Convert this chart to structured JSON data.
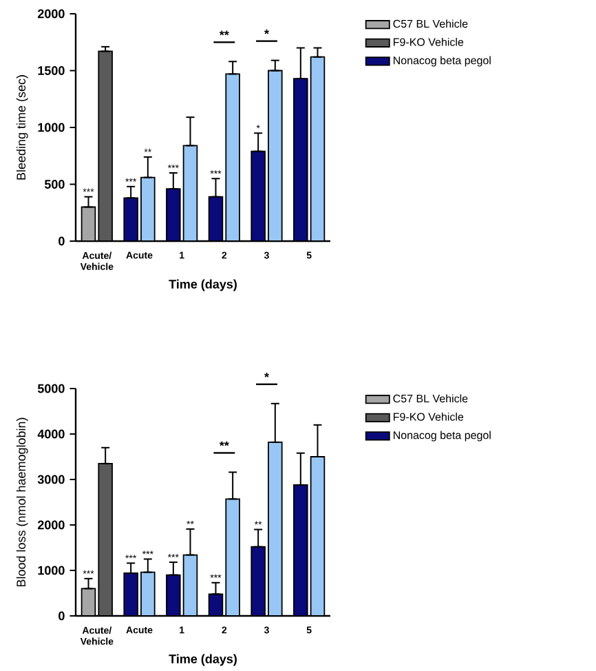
{
  "chart_data": [
    {
      "type": "bar",
      "xlabel": "Time (days)",
      "ylabel": "Bleeding time (sec)",
      "categories": [
        "Acute/ Vehicle",
        "Acute",
        "1",
        "2",
        "3",
        "5"
      ],
      "ylim": [
        0,
        2000
      ],
      "yticks": [
        0,
        500,
        1000,
        1500,
        2000
      ],
      "legend": "right",
      "series": [
        {
          "name": "C57 BL Vehicle",
          "color": "#a6a6a6",
          "values": [
            300,
            null,
            null,
            null,
            null,
            null
          ],
          "errors": [
            [
              300,
              390
            ],
            null,
            null,
            null,
            null,
            null
          ],
          "value_labels": [
            "***",
            null,
            null,
            null,
            null,
            null
          ]
        },
        {
          "name": "F9-KO Vehicle",
          "color": "#5a5a5a",
          "values": [
            1670,
            null,
            null,
            null,
            null,
            null
          ],
          "errors": [
            [
              1670,
              1710
            ],
            null,
            null,
            null,
            null,
            null
          ],
          "value_labels": [
            null,
            null,
            null,
            null,
            null,
            null
          ]
        },
        {
          "name": "Nonacog beta pegol",
          "color": "#0a0a7a",
          "values": [
            null,
            380,
            460,
            390,
            790,
            1430
          ],
          "errors": [
            null,
            [
              380,
              480
            ],
            [
              460,
              600
            ],
            [
              390,
              550
            ],
            [
              790,
              950
            ],
            [
              1430,
              1700
            ]
          ],
          "value_labels": [
            null,
            "***",
            "***",
            "***",
            "*",
            null
          ]
        },
        {
          "color": "#99c7f5",
          "values": [
            null,
            560,
            840,
            1470,
            1500,
            1620
          ],
          "errors": [
            null,
            [
              560,
              740
            ],
            [
              840,
              1090
            ],
            [
              1470,
              1580
            ],
            [
              1500,
              1590
            ],
            [
              1620,
              1700
            ]
          ],
          "value_labels": [
            null,
            "**",
            null,
            null,
            null,
            null
          ]
        }
      ],
      "annotations": [
        {
          "text": "**",
          "x": "2",
          "y": 1580
        },
        {
          "text": "*",
          "x": "3",
          "y": 1590
        }
      ]
    },
    {
      "type": "bar",
      "xlabel": "Time (days)",
      "ylabel": "Blood loss (nmol haemoglobin)",
      "categories": [
        "Acute/ Vehicle",
        "Acute",
        "1",
        "2",
        "3",
        "5"
      ],
      "ylim": [
        0,
        5000
      ],
      "yticks": [
        0,
        1000,
        2000,
        3000,
        4000,
        5000
      ],
      "legend": "right",
      "series": [
        {
          "name": "C57 BL Vehicle",
          "color": "#a6a6a6",
          "values": [
            600,
            null,
            null,
            null,
            null,
            null
          ],
          "errors": [
            [
              600,
              820
            ],
            null,
            null,
            null,
            null,
            null
          ],
          "value_labels": [
            "***",
            null,
            null,
            null,
            null,
            null
          ]
        },
        {
          "name": "F9-KO Vehicle",
          "color": "#5a5a5a",
          "values": [
            3350,
            null,
            null,
            null,
            null,
            null
          ],
          "errors": [
            [
              3350,
              3700
            ],
            null,
            null,
            null,
            null,
            null
          ],
          "value_labels": [
            null,
            null,
            null,
            null,
            null,
            null
          ]
        },
        {
          "name": "Nonacog beta pegol",
          "color": "#0a0a7a",
          "values": [
            null,
            940,
            900,
            480,
            1520,
            2880
          ],
          "errors": [
            null,
            [
              940,
              1160
            ],
            [
              900,
              1180
            ],
            [
              480,
              730
            ],
            [
              1520,
              1900
            ],
            [
              2880,
              3580
            ]
          ],
          "value_labels": [
            null,
            "***",
            "***",
            "***",
            "**",
            null
          ]
        },
        {
          "color": "#99c7f5",
          "values": [
            null,
            960,
            1340,
            2570,
            3820,
            3500
          ],
          "errors": [
            null,
            [
              960,
              1250
            ],
            [
              1340,
              1910
            ],
            [
              2570,
              3160
            ],
            [
              3820,
              4670
            ],
            [
              3500,
              4200
            ]
          ],
          "value_labels": [
            null,
            "***",
            "**",
            null,
            null,
            null
          ]
        }
      ],
      "annotations": [
        {
          "text": "**",
          "x": "2",
          "y": 3160
        },
        {
          "text": "*",
          "x": "3",
          "y": 4670
        }
      ]
    }
  ]
}
